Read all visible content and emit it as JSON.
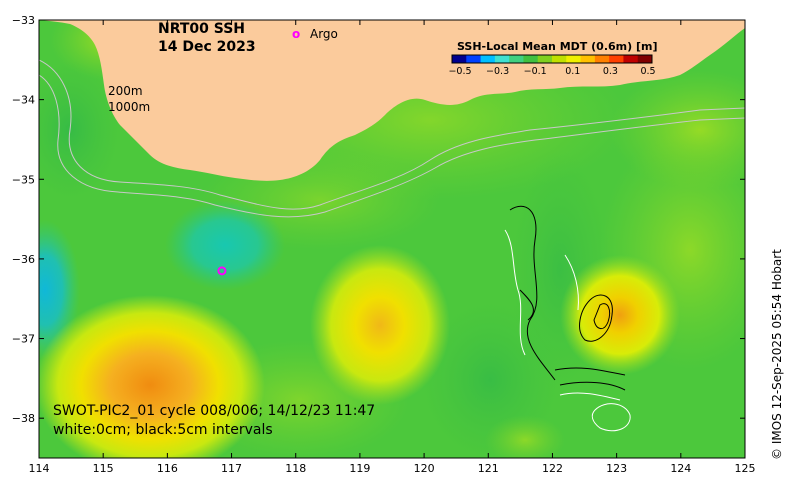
{
  "title": {
    "line1": "NRT00 SSH",
    "line2": "14 Dec 2023"
  },
  "argo_label": "Argo",
  "argo_marker": "o",
  "depth_labels": [
    "200m",
    "1000m"
  ],
  "colorbar": {
    "title": "SSH-Local Mean MDT (0.6m) [m]",
    "ticks": [
      "−0.5",
      "−0.3",
      "−0.1",
      "0.1",
      "0.3",
      "0.5"
    ],
    "colors": [
      "#00008f",
      "#0040ff",
      "#00bfff",
      "#40e0d0",
      "#40d080",
      "#40c040",
      "#80d020",
      "#c0e000",
      "#f0f000",
      "#ffc000",
      "#ff8000",
      "#ff4000",
      "#c00000",
      "#800000"
    ]
  },
  "info": {
    "line1": "SWOT-PIC2_01 cycle 008/006; 14/12/23 11:47",
    "line2": "white:0cm; black:5cm intervals"
  },
  "credit": "© IMOS 12-Sep-2025 05:54 Hobart",
  "axes": {
    "x_ticks": [
      "114",
      "115",
      "116",
      "117",
      "118",
      "119",
      "120",
      "121",
      "122",
      "123",
      "124",
      "125"
    ],
    "y_ticks": [
      "−33",
      "−34",
      "−35",
      "−36",
      "−37",
      "−38"
    ],
    "lon_range": [
      114,
      125
    ],
    "lat_range": [
      -38.5,
      -33
    ]
  },
  "colors": {
    "land": "#fbcb9c",
    "ocean_base": "#4cc83c",
    "frame": "#000000"
  }
}
